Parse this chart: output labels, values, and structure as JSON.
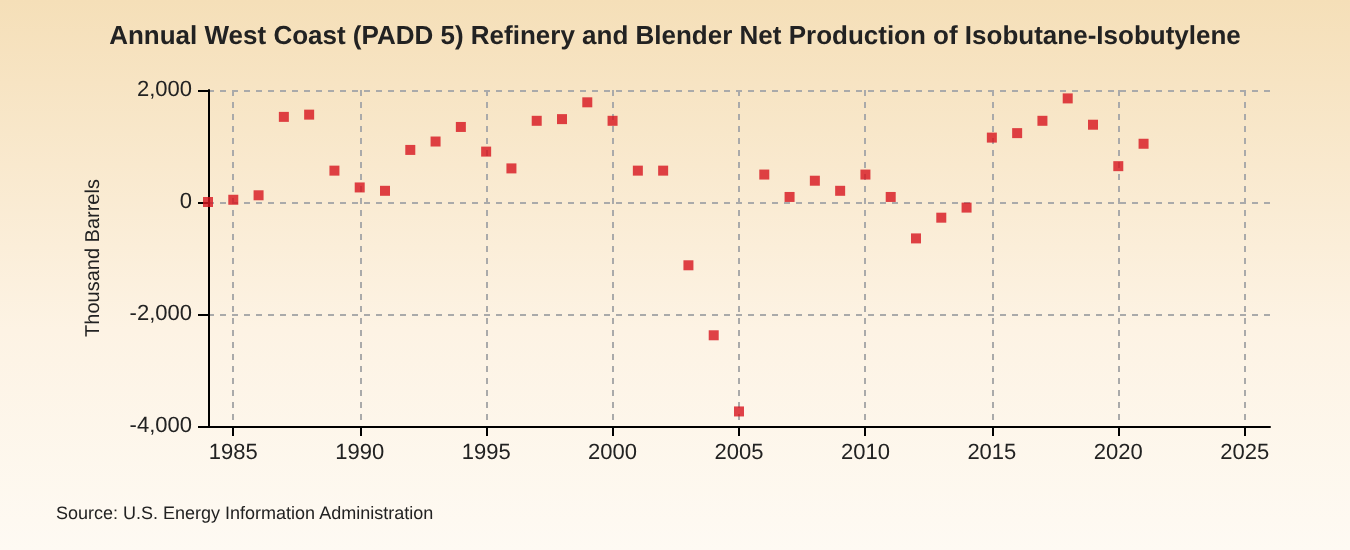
{
  "chart_data": {
    "type": "scatter",
    "title": "Annual West Coast (PADD 5) Refinery and Blender Net Production of Isobutane-Isobutylene",
    "ylabel": "Thousand Barrels",
    "annotations": [
      "Source: U.S. Energy Information Administration"
    ],
    "x": [
      1984,
      1985,
      1986,
      1987,
      1988,
      1989,
      1990,
      1991,
      1992,
      1993,
      1994,
      1995,
      1996,
      1997,
      1998,
      1999,
      2000,
      2001,
      2002,
      2003,
      2004,
      2005,
      2006,
      2007,
      2008,
      2009,
      2010,
      2011,
      2012,
      2013,
      2014,
      2015,
      2016,
      2017,
      2018,
      2019,
      2020,
      2021
    ],
    "series": [
      {
        "color": "#d7141e",
        "values": [
          0,
          40,
          120,
          1520,
          1560,
          560,
          260,
          200,
          930,
          1080,
          1340,
          900,
          600,
          1450,
          1480,
          1780,
          1450,
          560,
          560,
          -1130,
          -2380,
          -3740,
          490,
          90,
          380,
          200,
          490,
          90,
          -650,
          -280,
          -100,
          1150,
          1230,
          1450,
          1850,
          1380,
          640,
          1040
        ]
      }
    ],
    "xlim": [
      1984,
      2026
    ],
    "xticks": [
      1985,
      1990,
      1995,
      2000,
      2005,
      2010,
      2015,
      2020,
      2025
    ],
    "ylim": [
      -4000,
      2000
    ],
    "yticks": [
      {
        "value": -4000,
        "label": "-4,000"
      },
      {
        "value": -2000,
        "label": "-2,000"
      },
      0,
      {
        "value": 2000,
        "label": "2,000"
      }
    ],
    "grid": true,
    "marker": "square"
  }
}
